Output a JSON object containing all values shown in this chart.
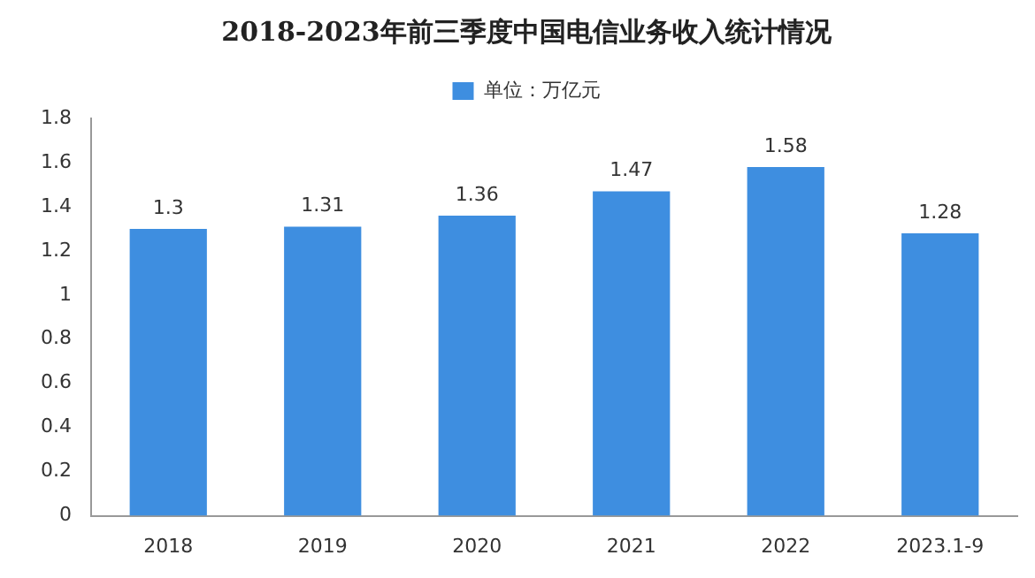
{
  "chart_data": {
    "type": "bar",
    "title": "2018-2023年前三季度中国电信业务收入统计情况",
    "categories": [
      "2018",
      "2019",
      "2020",
      "2021",
      "2022",
      "2023.1-9"
    ],
    "series": [
      {
        "name": "单位：万亿元",
        "color": "#3e8ee0",
        "values": [
          1.3,
          1.31,
          1.36,
          1.47,
          1.58,
          1.28
        ]
      }
    ],
    "ylim": [
      0,
      1.8
    ],
    "yticks": [
      0,
      0.2,
      0.4,
      0.6,
      0.8,
      1,
      1.2,
      1.4,
      1.6,
      1.8
    ],
    "grid": false,
    "legend": "top",
    "data_labels": true
  }
}
